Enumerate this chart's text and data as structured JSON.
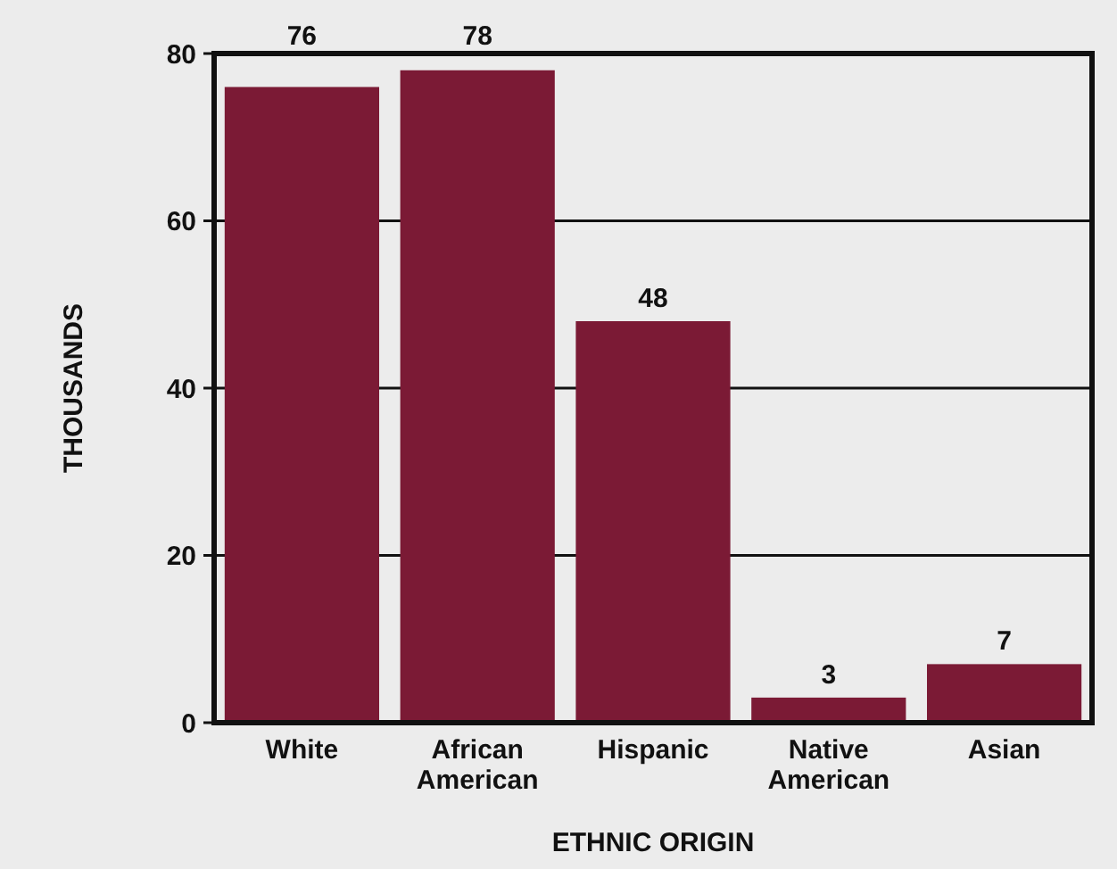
{
  "chart_data": {
    "type": "bar",
    "xlabel": "ETHNIC ORIGIN",
    "ylabel": "THOUSANDS",
    "categories": [
      "White",
      "African American",
      "Hispanic",
      "Native American",
      "Asian"
    ],
    "values": [
      76,
      78,
      48,
      3,
      7
    ],
    "color": "#7b1a35",
    "ylim": [
      0,
      80
    ],
    "yticks": [
      0,
      20,
      40,
      60,
      80
    ],
    "grid": "y",
    "data_labels": true
  }
}
